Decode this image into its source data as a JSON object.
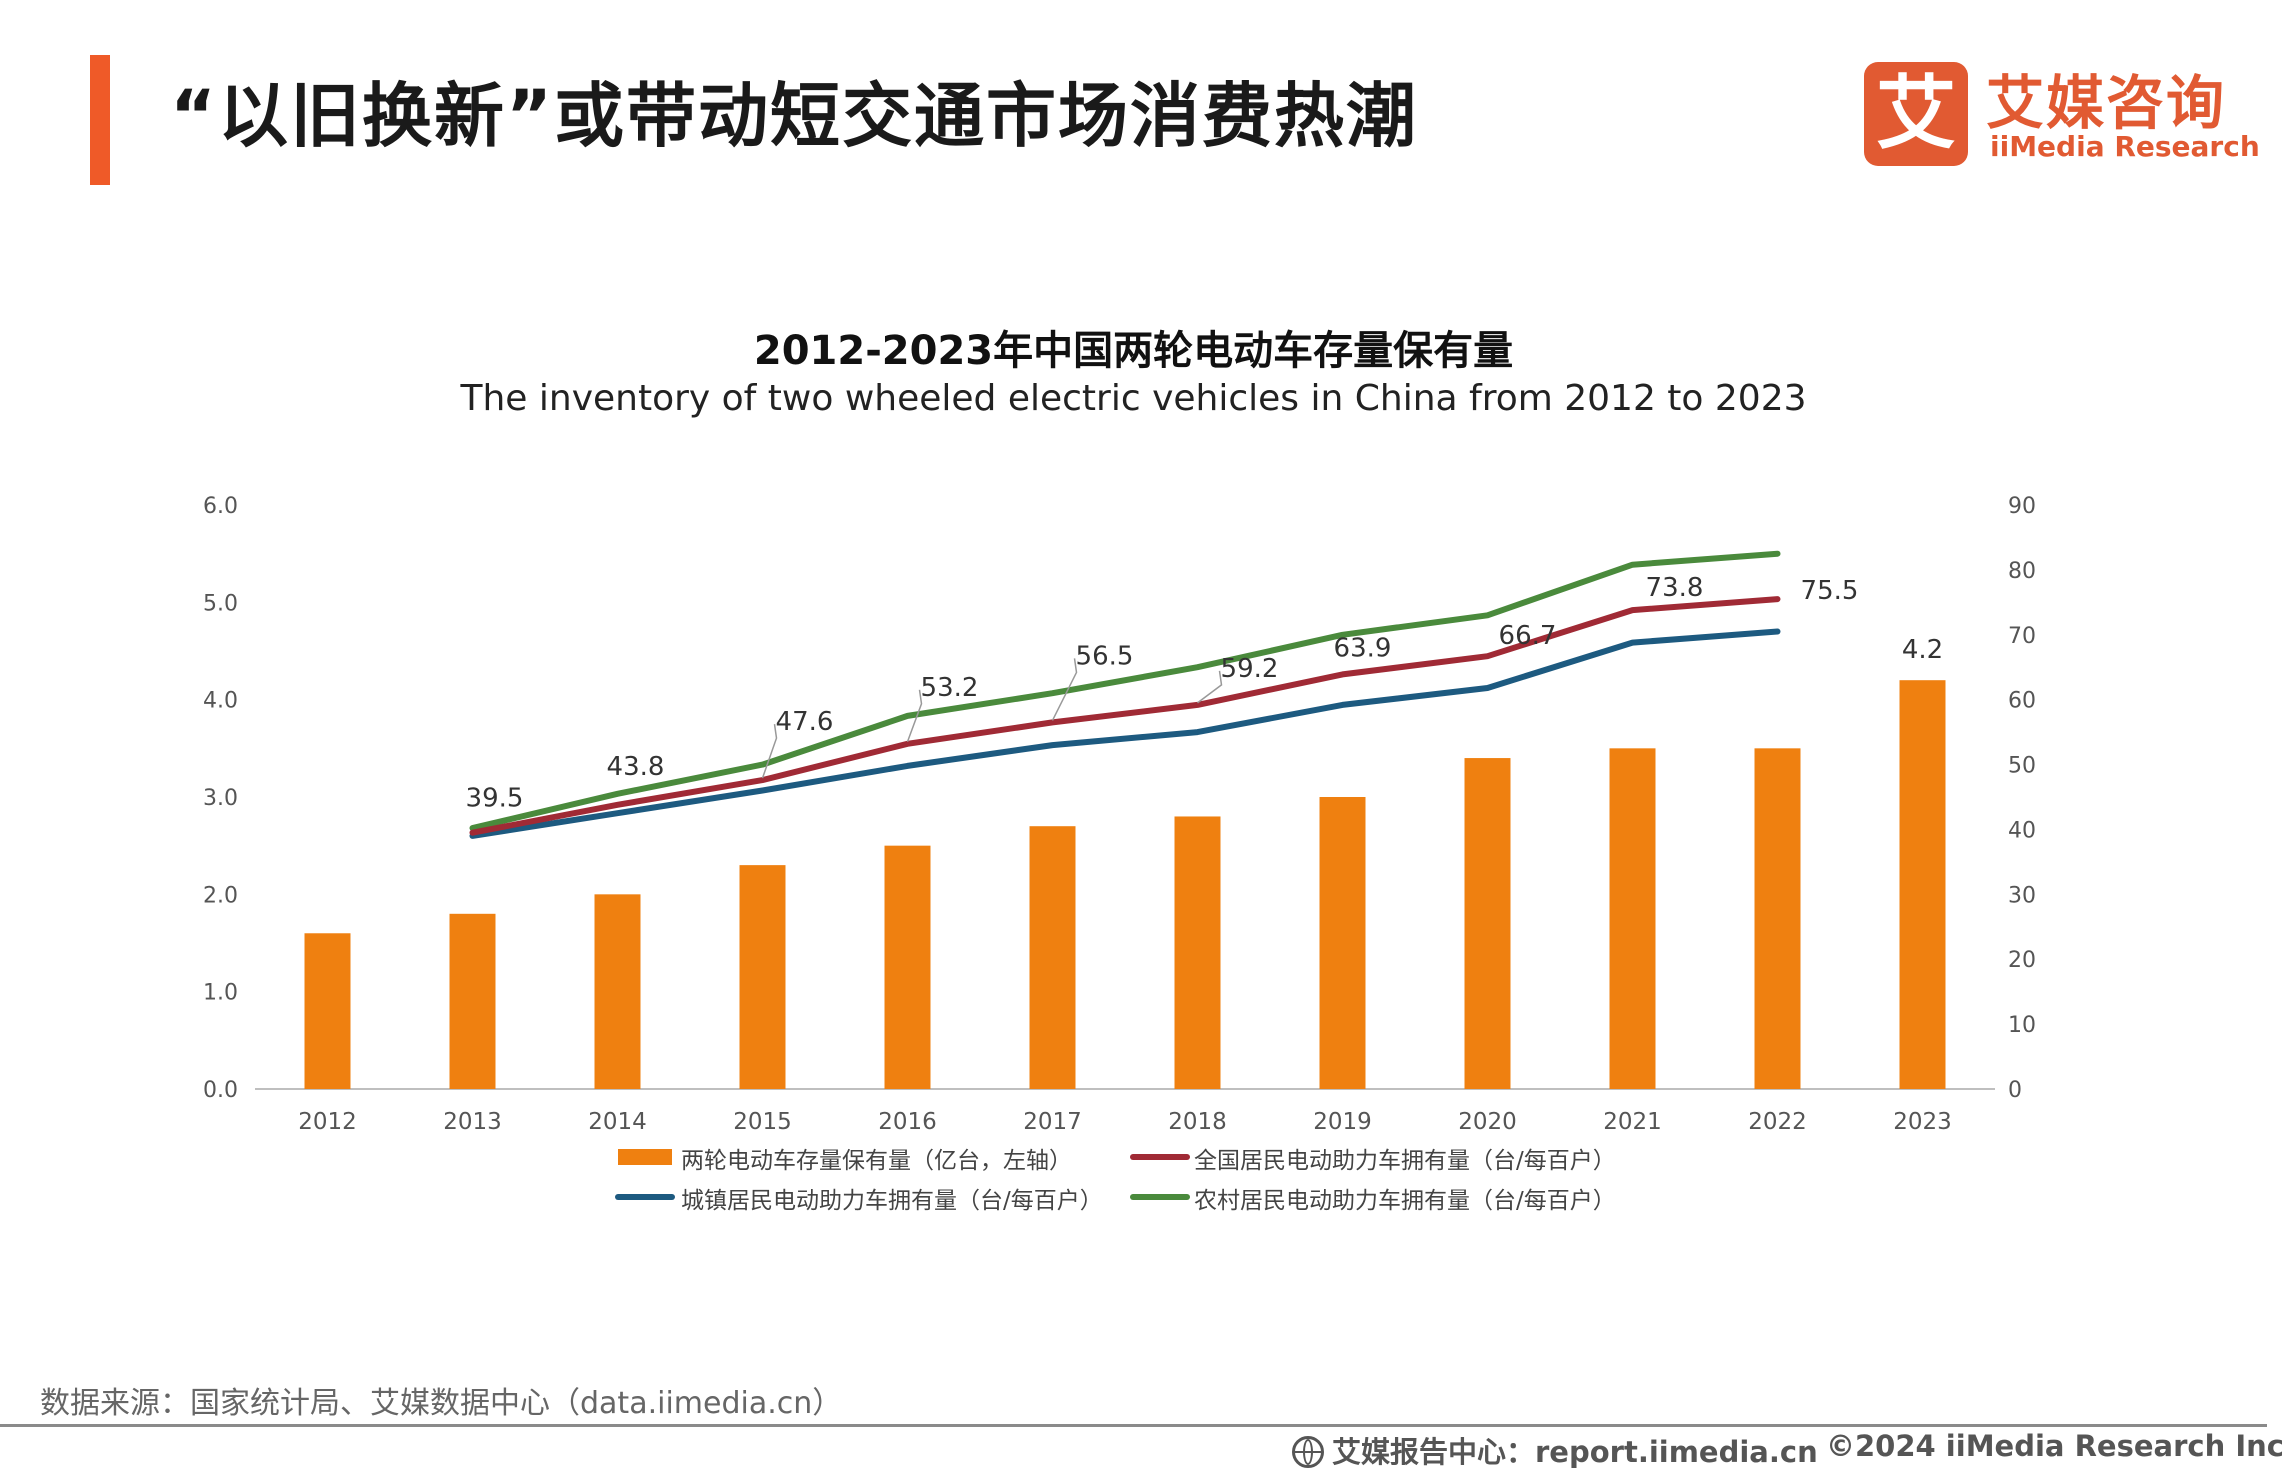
{
  "header": {
    "title": "“以旧换新”或带动短交通市场消费热潮",
    "logo_mark": "艾",
    "logo_cn": "艾媒咨询",
    "logo_en": "iiMedia Research"
  },
  "colors": {
    "accent": "#ef5a28",
    "bar": "#ef8010",
    "national": "#a02a35",
    "urban": "#1d5a80",
    "rural": "#4a8a3c"
  },
  "chart_data": {
    "type": "bar+line",
    "title": "2012-2023年中国两轮电动车存量保有量",
    "subtitle": "The inventory of two wheeled electric vehicles in China from 2012 to 2023",
    "categories": [
      "2012",
      "2013",
      "2014",
      "2015",
      "2016",
      "2017",
      "2018",
      "2019",
      "2020",
      "2021",
      "2022",
      "2023"
    ],
    "left_axis": {
      "min": 0,
      "max": 6,
      "ticks": [
        "0.0",
        "1.0",
        "2.0",
        "3.0",
        "4.0",
        "5.0",
        "6.0"
      ]
    },
    "right_axis": {
      "min": 0,
      "max": 90,
      "ticks": [
        "0",
        "10",
        "20",
        "30",
        "40",
        "50",
        "60",
        "70",
        "80",
        "90"
      ]
    },
    "series": [
      {
        "name": "两轮电动车存量保有量（亿台，左轴）",
        "type": "bar",
        "axis": "left",
        "color": "#ef8010",
        "values": [
          1.6,
          1.8,
          2.0,
          2.3,
          2.5,
          2.7,
          2.8,
          3.0,
          3.4,
          3.5,
          3.5,
          4.2
        ],
        "data_labels": [
          null,
          null,
          null,
          null,
          null,
          null,
          null,
          null,
          null,
          null,
          null,
          "4.2"
        ]
      },
      {
        "name": "全国居民电动助力车拥有量（台/每百户）",
        "type": "line",
        "axis": "right",
        "color": "#a02a35",
        "values": [
          null,
          39.5,
          43.8,
          47.6,
          53.2,
          56.5,
          59.2,
          63.9,
          66.7,
          73.8,
          75.5,
          null
        ],
        "data_labels": [
          null,
          "39.5",
          "43.8",
          "47.6",
          "53.2",
          "56.5",
          "59.2",
          "63.9",
          "66.7",
          "73.8",
          "75.5",
          null
        ]
      },
      {
        "name": "城镇居民电动助力车拥有量（台/每百户）",
        "type": "line",
        "axis": "right",
        "color": "#1d5a80",
        "values": [
          null,
          39.0,
          42.5,
          46.0,
          49.8,
          53.0,
          55.0,
          59.2,
          61.8,
          68.8,
          70.5,
          null
        ]
      },
      {
        "name": "农村居民电动助力车拥有量（台/每百户）",
        "type": "line",
        "axis": "right",
        "color": "#4a8a3c",
        "values": [
          null,
          40.2,
          45.5,
          50.0,
          57.5,
          61.0,
          65.0,
          70.0,
          73.0,
          80.8,
          82.5,
          null
        ]
      }
    ]
  },
  "footer": {
    "source": "数据来源：国家统计局、艾媒数据中心（data.iimedia.cn）",
    "report_center": "艾媒报告中心：report.iimedia.cn",
    "copyright": "©2024  iiMedia Research  Inc"
  }
}
